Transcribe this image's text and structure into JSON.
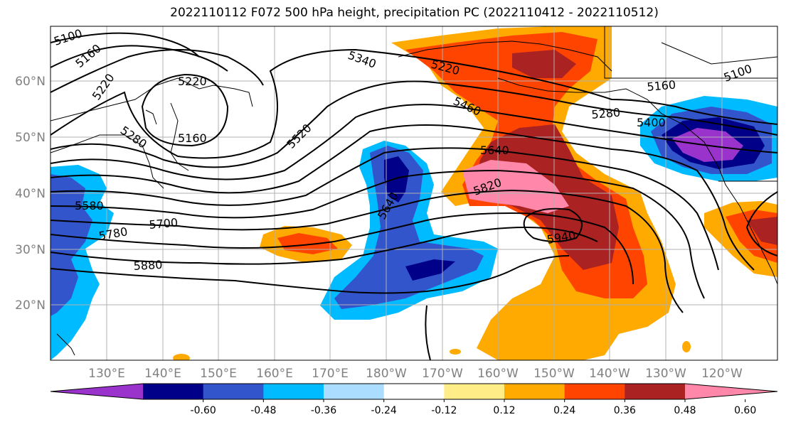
{
  "title": "2022110112 F072 500 hPa height, precipitation PC (2022110412 - 2022110512)",
  "latitudes": [
    "60°N",
    "50°N",
    "40°N",
    "30°N",
    "20°N"
  ],
  "longitudes": [
    "130°E",
    "140°E",
    "150°E",
    "160°E",
    "170°E",
    "180°W",
    "170°W",
    "160°W",
    "150°W",
    "140°W",
    "130°W",
    "120°W"
  ],
  "colorbar": {
    "ticks": [
      "-0.60",
      "-0.48",
      "-0.36",
      "-0.24",
      "-0.12",
      "0.12",
      "0.24",
      "0.36",
      "0.48",
      "0.60"
    ],
    "colors": [
      "#9933cc",
      "#000088",
      "#3355cc",
      "#00bbff",
      "#aaddff",
      "#ffffff",
      "#ffee88",
      "#ffaa00",
      "#ff4400",
      "#aa2222",
      "#ff88aa"
    ]
  },
  "contour_labels": [
    "5100",
    "5160",
    "5220",
    "5220",
    "5280",
    "5160",
    "5520",
    "5340",
    "5220",
    "5460",
    "5640",
    "5820",
    "5940",
    "5280",
    "5400",
    "5160",
    "5100",
    "5580",
    "5780",
    "5700",
    "5880",
    "5640"
  ]
}
